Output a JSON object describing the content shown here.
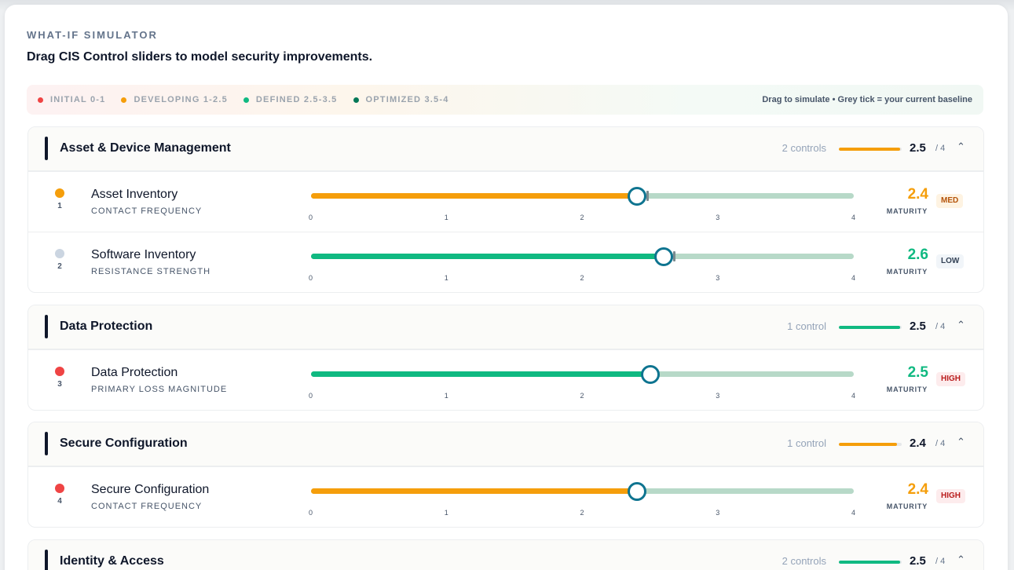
{
  "header": {
    "eyebrow": "WHAT-IF SIMULATOR",
    "subtitle": "Drag CIS Control sliders to model security improvements."
  },
  "legend": {
    "items": [
      {
        "label": "INITIAL 0-1",
        "color": "#ef4444"
      },
      {
        "label": "DEVELOPING 1-2.5",
        "color": "#f59e0b"
      },
      {
        "label": "DEFINED 2.5-3.5",
        "color": "#10b981"
      },
      {
        "label": "OPTIMIZED 3.5-4",
        "color": "#047857"
      }
    ],
    "hint": "Drag to simulate • Grey tick = your current baseline"
  },
  "scale": {
    "min": 0,
    "max": 4,
    "ticks": [
      "0",
      "1",
      "2",
      "3",
      "4"
    ]
  },
  "groups": [
    {
      "title": "Asset & Device Management",
      "count": "2 controls",
      "score": "2.5",
      "score_value": 2.5,
      "denominator": "/ 4",
      "color": "#f59e0b",
      "controls": [
        {
          "num": "1",
          "name": "Asset Inventory",
          "sub": "CONTACT FREQUENCY",
          "value": "2.4",
          "value_num": 2.4,
          "baseline": 2.4,
          "color": "#f59e0b",
          "dot_color": "#f59e0b",
          "maturity": "MATURITY",
          "risk": "MED",
          "risk_color": "#b45309",
          "risk_bg": "#fef3e2"
        },
        {
          "num": "2",
          "name": "Software Inventory",
          "sub": "RESISTANCE STRENGTH",
          "value": "2.6",
          "value_num": 2.6,
          "baseline": 2.6,
          "color": "#10b981",
          "dot_color": "#cbd5e1",
          "maturity": "MATURITY",
          "risk": "LOW",
          "risk_color": "#334155",
          "risk_bg": "#f1f5f9"
        }
      ]
    },
    {
      "title": "Data Protection",
      "count": "1 control",
      "score": "2.5",
      "score_value": 2.5,
      "denominator": "/ 4",
      "color": "#10b981",
      "controls": [
        {
          "num": "3",
          "name": "Data Protection",
          "sub": "PRIMARY LOSS MAGNITUDE",
          "value": "2.5",
          "value_num": 2.5,
          "color": "#10b981",
          "dot_color": "#ef4444",
          "maturity": "MATURITY",
          "risk": "HIGH",
          "risk_color": "#b91c1c",
          "risk_bg": "#fdeced"
        }
      ]
    },
    {
      "title": "Secure Configuration",
      "count": "1 control",
      "score": "2.4",
      "score_value": 2.4,
      "denominator": "/ 4",
      "color": "#f59e0b",
      "controls": [
        {
          "num": "4",
          "name": "Secure Configuration",
          "sub": "CONTACT FREQUENCY",
          "value": "2.4",
          "value_num": 2.4,
          "color": "#f59e0b",
          "dot_color": "#ef4444",
          "maturity": "MATURITY",
          "risk": "HIGH",
          "risk_color": "#b91c1c",
          "risk_bg": "#fdeced"
        }
      ]
    },
    {
      "title": "Identity & Access",
      "count": "2 controls",
      "score": "2.5",
      "score_value": 2.5,
      "denominator": "/ 4",
      "color": "#10b981",
      "controls": []
    }
  ],
  "icons": {
    "collapse": "chevron-up-icon",
    "legend": "dot-icon",
    "status": "status-dot-icon"
  }
}
